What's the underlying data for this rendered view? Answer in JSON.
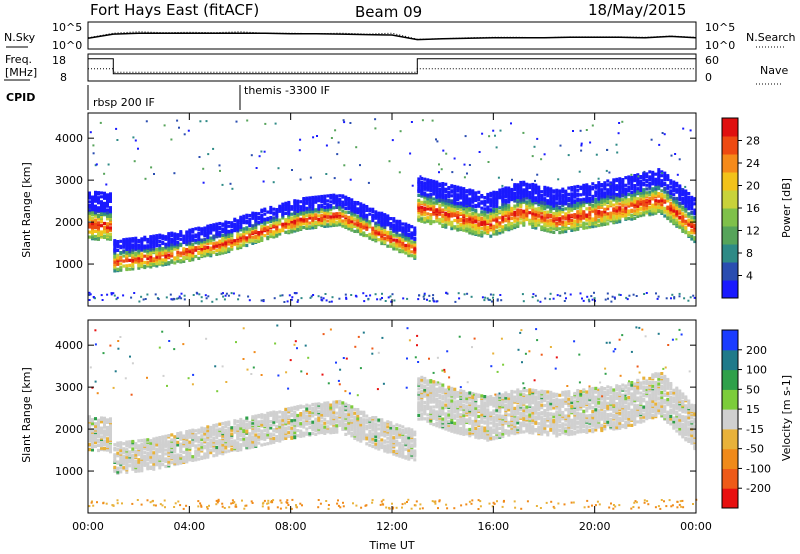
{
  "header": {
    "station": "Fort Hays East (fitACF)",
    "beam": "Beam 09",
    "date": "18/May/2015"
  },
  "chart_data": [
    {
      "type": "line",
      "panel": "noise",
      "left_label": "N.Sky",
      "right_label": "N.Search",
      "left_ticks": [
        "10^5",
        "10^0"
      ],
      "right_ticks": [
        "10^5",
        "10^0"
      ],
      "ylim_log10": [
        0,
        5
      ],
      "x_hours": [
        0,
        1,
        2,
        3,
        4,
        5,
        6,
        7,
        8,
        9,
        10,
        11,
        12,
        13,
        14,
        15,
        16,
        17,
        18,
        19,
        20,
        21,
        22,
        23,
        24
      ],
      "series": [
        {
          "name": "N.Sky",
          "style": "solid",
          "values_log10": [
            1.9,
            2.8,
            3.0,
            3.0,
            3.0,
            3.0,
            3.0,
            3.0,
            2.9,
            2.9,
            2.8,
            2.7,
            2.6,
            1.6,
            1.8,
            1.9,
            2.0,
            2.0,
            2.0,
            2.1,
            2.1,
            2.1,
            2.0,
            2.3,
            2.0
          ]
        },
        {
          "name": "N.Search",
          "style": "dotted",
          "values_log10": [
            2.0,
            3.0,
            3.3,
            3.1,
            3.2,
            3.1,
            3.3,
            3.0,
            3.0,
            2.9,
            3.0,
            2.8,
            3.0,
            1.7,
            1.8,
            2.0,
            2.1,
            2.1,
            2.0,
            2.2,
            2.2,
            2.2,
            2.1,
            2.4,
            2.1
          ]
        }
      ]
    },
    {
      "type": "line",
      "panel": "frequency",
      "left_label_lines": [
        "Freq.",
        "[MHz]"
      ],
      "right_label": "Nave",
      "left_ticks": [
        "18",
        "8"
      ],
      "right_ticks": [
        "60",
        "0"
      ],
      "ylim": [
        8,
        18
      ],
      "series": [
        {
          "name": "Freq.",
          "style": "solid",
          "x": [
            0,
            1.0,
            1.0,
            13.0,
            13.0,
            24
          ],
          "values": [
            16.8,
            16.8,
            10.3,
            10.3,
            16.8,
            16.8
          ]
        },
        {
          "name": "Nave",
          "style": "dotted",
          "x": [
            0,
            1.0,
            1.0,
            13.0,
            13.0,
            24
          ],
          "values": [
            12.5,
            12.5,
            10.9,
            10.9,
            12.5,
            12.5
          ]
        }
      ]
    },
    {
      "type": "table",
      "panel": "cpid",
      "label": "CPID",
      "entries": [
        {
          "text": "rbsp 200 IF",
          "start_hour": 0
        },
        {
          "text": "themis -3300 IF",
          "start_hour": 6.0
        }
      ]
    },
    {
      "type": "heatmap",
      "panel": "power",
      "ylabel": "Slant Range [km]",
      "ylim": [
        0,
        4600
      ],
      "y_ticks": [
        1000,
        2000,
        3000,
        4000
      ],
      "colorbar_label": "Power [dB]",
      "colorbar_ticks": [
        "4",
        "8",
        "12",
        "16",
        "20",
        "24",
        "28"
      ],
      "colorbar_colors": [
        "#1a1aff",
        "#2a4db0",
        "#2e8a86",
        "#56a45a",
        "#7fc04a",
        "#c8d23a",
        "#f2c21a",
        "#f58a1a",
        "#ee4a12",
        "#e01010"
      ],
      "bands": [
        {
          "start_hour": 0,
          "end_hour": 1.0,
          "center_km": [
            2000,
            1950
          ],
          "width_km": 700
        },
        {
          "start_hour": 1.0,
          "end_hour": 13.0,
          "center_km": [
            1100,
            1200,
            1350,
            1550,
            1850,
            2100,
            2200,
            1800,
            1400
          ],
          "width_km": 450
        },
        {
          "start_hour": 13.0,
          "end_hour": 24.0,
          "center_km": [
            2400,
            2200,
            2000,
            2300,
            2100,
            2250,
            2400,
            2600,
            1900
          ],
          "width_km": 650
        }
      ]
    },
    {
      "type": "heatmap",
      "panel": "velocity",
      "ylabel": "Slant Range [km]",
      "ylim": [
        0,
        4600
      ],
      "y_ticks": [
        1000,
        2000,
        3000,
        4000
      ],
      "colorbar_label": "Velocity [m s-1]",
      "colorbar_ticks": [
        "200",
        "100",
        "50",
        "15",
        "-15",
        "-50",
        "-100",
        "-200"
      ],
      "colorbar_colors": [
        "#1a3cff",
        "#1f7a8a",
        "#2fa04a",
        "#7ccc3a",
        "#d0d0d0",
        "#e8b23a",
        "#f08a1a",
        "#ee5a18",
        "#e81010"
      ],
      "bands": [
        {
          "start_hour": 0,
          "end_hour": 1.0,
          "center_km": [
            1800,
            1750
          ],
          "width_km": 500
        },
        {
          "start_hour": 1.0,
          "end_hour": 13.0,
          "center_km": [
            1200,
            1300,
            1500,
            1700,
            1900,
            2100,
            2200,
            1800,
            1500
          ],
          "width_km": 450
        },
        {
          "start_hour": 13.0,
          "end_hour": 24.0,
          "center_km": [
            2600,
            2300,
            2100,
            2300,
            2200,
            2300,
            2400,
            2700,
            1900
          ],
          "width_km": 650
        }
      ],
      "x_ticks": [
        "00:00",
        "04:00",
        "08:00",
        "12:00",
        "16:00",
        "20:00",
        "00:00"
      ],
      "xlabel": "Time UT",
      "xlim_hours": [
        0,
        24
      ]
    }
  ]
}
